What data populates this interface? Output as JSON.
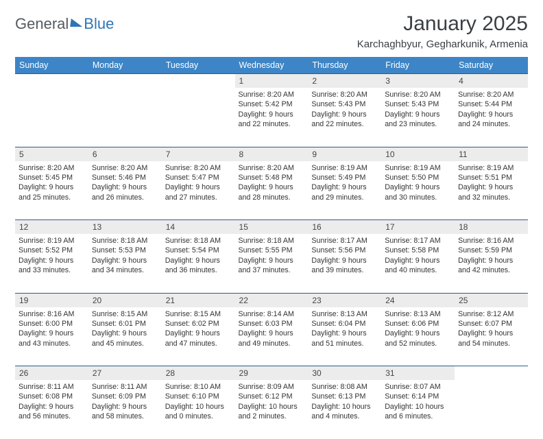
{
  "logo": {
    "general": "General",
    "blue": "Blue"
  },
  "title": "January 2025",
  "location": "Karchaghbyur, Gegharkunik, Armenia",
  "colors": {
    "header_bg": "#3d85c6",
    "header_fg": "#ffffff",
    "rule": "#2e5b8a",
    "daynum_bg": "#ececec",
    "text": "#333333",
    "logo_gray": "#555a5f",
    "logo_blue": "#2e75b6"
  },
  "weekdays": [
    "Sunday",
    "Monday",
    "Tuesday",
    "Wednesday",
    "Thursday",
    "Friday",
    "Saturday"
  ],
  "weeks": [
    [
      null,
      null,
      null,
      {
        "n": "1",
        "sr": "8:20 AM",
        "ss": "5:42 PM",
        "dl": "9 hours and 22 minutes."
      },
      {
        "n": "2",
        "sr": "8:20 AM",
        "ss": "5:43 PM",
        "dl": "9 hours and 22 minutes."
      },
      {
        "n": "3",
        "sr": "8:20 AM",
        "ss": "5:43 PM",
        "dl": "9 hours and 23 minutes."
      },
      {
        "n": "4",
        "sr": "8:20 AM",
        "ss": "5:44 PM",
        "dl": "9 hours and 24 minutes."
      }
    ],
    [
      {
        "n": "5",
        "sr": "8:20 AM",
        "ss": "5:45 PM",
        "dl": "9 hours and 25 minutes."
      },
      {
        "n": "6",
        "sr": "8:20 AM",
        "ss": "5:46 PM",
        "dl": "9 hours and 26 minutes."
      },
      {
        "n": "7",
        "sr": "8:20 AM",
        "ss": "5:47 PM",
        "dl": "9 hours and 27 minutes."
      },
      {
        "n": "8",
        "sr": "8:20 AM",
        "ss": "5:48 PM",
        "dl": "9 hours and 28 minutes."
      },
      {
        "n": "9",
        "sr": "8:19 AM",
        "ss": "5:49 PM",
        "dl": "9 hours and 29 minutes."
      },
      {
        "n": "10",
        "sr": "8:19 AM",
        "ss": "5:50 PM",
        "dl": "9 hours and 30 minutes."
      },
      {
        "n": "11",
        "sr": "8:19 AM",
        "ss": "5:51 PM",
        "dl": "9 hours and 32 minutes."
      }
    ],
    [
      {
        "n": "12",
        "sr": "8:19 AM",
        "ss": "5:52 PM",
        "dl": "9 hours and 33 minutes."
      },
      {
        "n": "13",
        "sr": "8:18 AM",
        "ss": "5:53 PM",
        "dl": "9 hours and 34 minutes."
      },
      {
        "n": "14",
        "sr": "8:18 AM",
        "ss": "5:54 PM",
        "dl": "9 hours and 36 minutes."
      },
      {
        "n": "15",
        "sr": "8:18 AM",
        "ss": "5:55 PM",
        "dl": "9 hours and 37 minutes."
      },
      {
        "n": "16",
        "sr": "8:17 AM",
        "ss": "5:56 PM",
        "dl": "9 hours and 39 minutes."
      },
      {
        "n": "17",
        "sr": "8:17 AM",
        "ss": "5:58 PM",
        "dl": "9 hours and 40 minutes."
      },
      {
        "n": "18",
        "sr": "8:16 AM",
        "ss": "5:59 PM",
        "dl": "9 hours and 42 minutes."
      }
    ],
    [
      {
        "n": "19",
        "sr": "8:16 AM",
        "ss": "6:00 PM",
        "dl": "9 hours and 43 minutes."
      },
      {
        "n": "20",
        "sr": "8:15 AM",
        "ss": "6:01 PM",
        "dl": "9 hours and 45 minutes."
      },
      {
        "n": "21",
        "sr": "8:15 AM",
        "ss": "6:02 PM",
        "dl": "9 hours and 47 minutes."
      },
      {
        "n": "22",
        "sr": "8:14 AM",
        "ss": "6:03 PM",
        "dl": "9 hours and 49 minutes."
      },
      {
        "n": "23",
        "sr": "8:13 AM",
        "ss": "6:04 PM",
        "dl": "9 hours and 51 minutes."
      },
      {
        "n": "24",
        "sr": "8:13 AM",
        "ss": "6:06 PM",
        "dl": "9 hours and 52 minutes."
      },
      {
        "n": "25",
        "sr": "8:12 AM",
        "ss": "6:07 PM",
        "dl": "9 hours and 54 minutes."
      }
    ],
    [
      {
        "n": "26",
        "sr": "8:11 AM",
        "ss": "6:08 PM",
        "dl": "9 hours and 56 minutes."
      },
      {
        "n": "27",
        "sr": "8:11 AM",
        "ss": "6:09 PM",
        "dl": "9 hours and 58 minutes."
      },
      {
        "n": "28",
        "sr": "8:10 AM",
        "ss": "6:10 PM",
        "dl": "10 hours and 0 minutes."
      },
      {
        "n": "29",
        "sr": "8:09 AM",
        "ss": "6:12 PM",
        "dl": "10 hours and 2 minutes."
      },
      {
        "n": "30",
        "sr": "8:08 AM",
        "ss": "6:13 PM",
        "dl": "10 hours and 4 minutes."
      },
      {
        "n": "31",
        "sr": "8:07 AM",
        "ss": "6:14 PM",
        "dl": "10 hours and 6 minutes."
      },
      null
    ]
  ],
  "labels": {
    "sunrise": "Sunrise:",
    "sunset": "Sunset:",
    "daylight": "Daylight:"
  }
}
